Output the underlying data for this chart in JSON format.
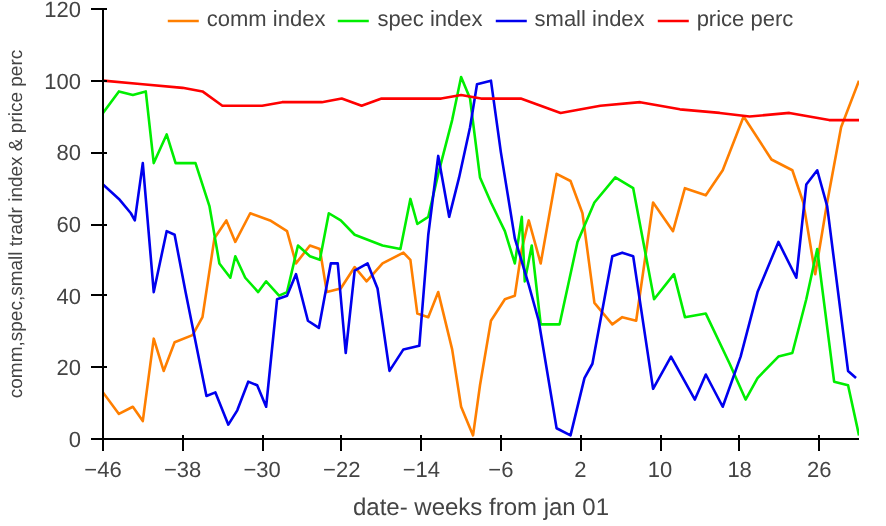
{
  "chart_data": {
    "type": "line",
    "xlabel": "date- weeks from jan 01",
    "ylabel": "comm,spec,small tradr index & price perc",
    "xlim": [
      -46,
      30
    ],
    "xticks": [
      -46,
      -38,
      -30,
      -22,
      -14,
      -6,
      2,
      10,
      18,
      26
    ],
    "ylim": [
      0,
      120
    ],
    "yticks": [
      0,
      20,
      40,
      60,
      80,
      100,
      120
    ],
    "grid": false,
    "legend": "top",
    "marker": "none",
    "line_style": "solid",
    "series": [
      {
        "name": "comm index",
        "color": "#ff7f00",
        "x": [
          -46,
          -44.4,
          -43,
          -42,
          -40.9,
          -39.9,
          -38.8,
          -37,
          -36,
          -34.8,
          -33.6,
          -32.7,
          -31.2,
          -29.2,
          -27.5,
          -26.6,
          -25.2,
          -24.2,
          -23.5,
          -22.1,
          -20.7,
          -19.5,
          -17.9,
          -15.8,
          -15.1,
          -14.4,
          -13.3,
          -12.3,
          -10.9,
          -10,
          -8.8,
          -8.1,
          -7.0,
          -5.6,
          -4.6,
          -3.9,
          -3.2,
          -2.0,
          -0.4,
          1.0,
          2.2,
          3.4,
          5.2,
          6.2,
          7.6,
          9.3,
          11.3,
          12.5,
          14.6,
          16.3,
          18.4,
          21.2,
          23.3,
          24.4,
          25.6,
          26.8,
          28.2,
          30
        ],
        "values": [
          13,
          7,
          9,
          5,
          28,
          19,
          27,
          29,
          34,
          56,
          61,
          55,
          63,
          61,
          58,
          49,
          54,
          53,
          41,
          42,
          48,
          44,
          49,
          52,
          50,
          35,
          34,
          41,
          25,
          9,
          1,
          15,
          33,
          39,
          40,
          53,
          61,
          49,
          74,
          72,
          63,
          38,
          32,
          34,
          33,
          66,
          58,
          70,
          68,
          75,
          90,
          78,
          75,
          66,
          46,
          66,
          87,
          100
        ]
      },
      {
        "name": "spec index",
        "color": "#00ee00",
        "x": [
          -46,
          -44.4,
          -43,
          -41.7,
          -40.9,
          -39.6,
          -38.7,
          -36.7,
          -35.3,
          -34.3,
          -33.2,
          -32.7,
          -31.7,
          -30.4,
          -29.6,
          -28.3,
          -27.5,
          -26.4,
          -25.2,
          -24.2,
          -23.3,
          -22.1,
          -20.7,
          -17.9,
          -16.1,
          -15.1,
          -14.4,
          -13.3,
          -12.3,
          -10.9,
          -10,
          -9.1,
          -8.1,
          -7.0,
          -5.6,
          -4.6,
          -3.9,
          -3.6,
          -2.9,
          -2.0,
          -0.1,
          1.7,
          3.4,
          5.5,
          7.3,
          9.4,
          11.4,
          12.5,
          14.6,
          17.0,
          18.6,
          19.8,
          21.9,
          23.3,
          24.7,
          25.8,
          27.5,
          28.9,
          30
        ],
        "values": [
          91,
          97,
          96,
          97,
          77,
          85,
          77,
          77,
          65,
          49,
          45,
          51,
          45,
          41,
          44,
          40,
          41,
          54,
          51,
          50,
          63,
          61,
          57,
          54,
          53,
          67,
          60,
          62,
          74,
          89,
          101,
          95,
          73,
          66,
          58,
          49,
          62,
          44,
          54,
          32,
          32,
          55,
          66,
          73,
          70,
          39,
          46,
          34,
          35,
          21,
          11,
          17,
          23,
          24,
          39,
          53,
          16,
          15,
          1
        ]
      },
      {
        "name": "small index",
        "color": "#0000ee",
        "x": [
          -46,
          -44.4,
          -43.2,
          -42.8,
          -42,
          -40.9,
          -39.6,
          -38.8,
          -37.7,
          -35.6,
          -34.7,
          -33.4,
          -32.5,
          -31.4,
          -30.5,
          -29.6,
          -28.5,
          -27.5,
          -26.6,
          -25.4,
          -24.3,
          -23.1,
          -22.4,
          -21.6,
          -20.7,
          -19.4,
          -18.4,
          -17.2,
          -15.8,
          -14.2,
          -13.3,
          -12.3,
          -11.2,
          -10.2,
          -9.1,
          -8.4,
          -7.0,
          -6.0,
          -4.6,
          -3.2,
          -2.2,
          -0.4,
          1.0,
          2.4,
          3.2,
          5.2,
          6.2,
          7.3,
          9.3,
          11.1,
          13.5,
          14.6,
          16.3,
          18.1,
          19.8,
          21.9,
          23.7,
          24.7,
          25.8,
          26.8,
          28.9,
          29.7
        ],
        "values": [
          71,
          67,
          63,
          61,
          77,
          41,
          58,
          57,
          41,
          12,
          13,
          4,
          8,
          16,
          15,
          9,
          39,
          40,
          46,
          33,
          31,
          49,
          49,
          24,
          47,
          49,
          42,
          19,
          25,
          26,
          57,
          79,
          62,
          73,
          87,
          99,
          100,
          80,
          56,
          43,
          33,
          3,
          1,
          17,
          21,
          51,
          52,
          51,
          14,
          23,
          11,
          18,
          9,
          23,
          41,
          55,
          45,
          71,
          75,
          65,
          19,
          17
        ]
      },
      {
        "name": "price perc",
        "color": "#ff0000",
        "x": [
          -46,
          -42,
          -38,
          -36,
          -34,
          -30,
          -28,
          -24,
          -22,
          -20,
          -18,
          -12,
          -10,
          -8,
          -4,
          0,
          4,
          8,
          12,
          16,
          19,
          23,
          27,
          30
        ],
        "values": [
          100,
          99,
          98,
          97,
          93,
          93,
          94,
          94,
          95,
          93,
          95,
          95,
          96,
          95,
          95,
          91,
          93,
          94,
          92,
          91,
          90,
          91,
          89,
          89
        ]
      }
    ]
  }
}
